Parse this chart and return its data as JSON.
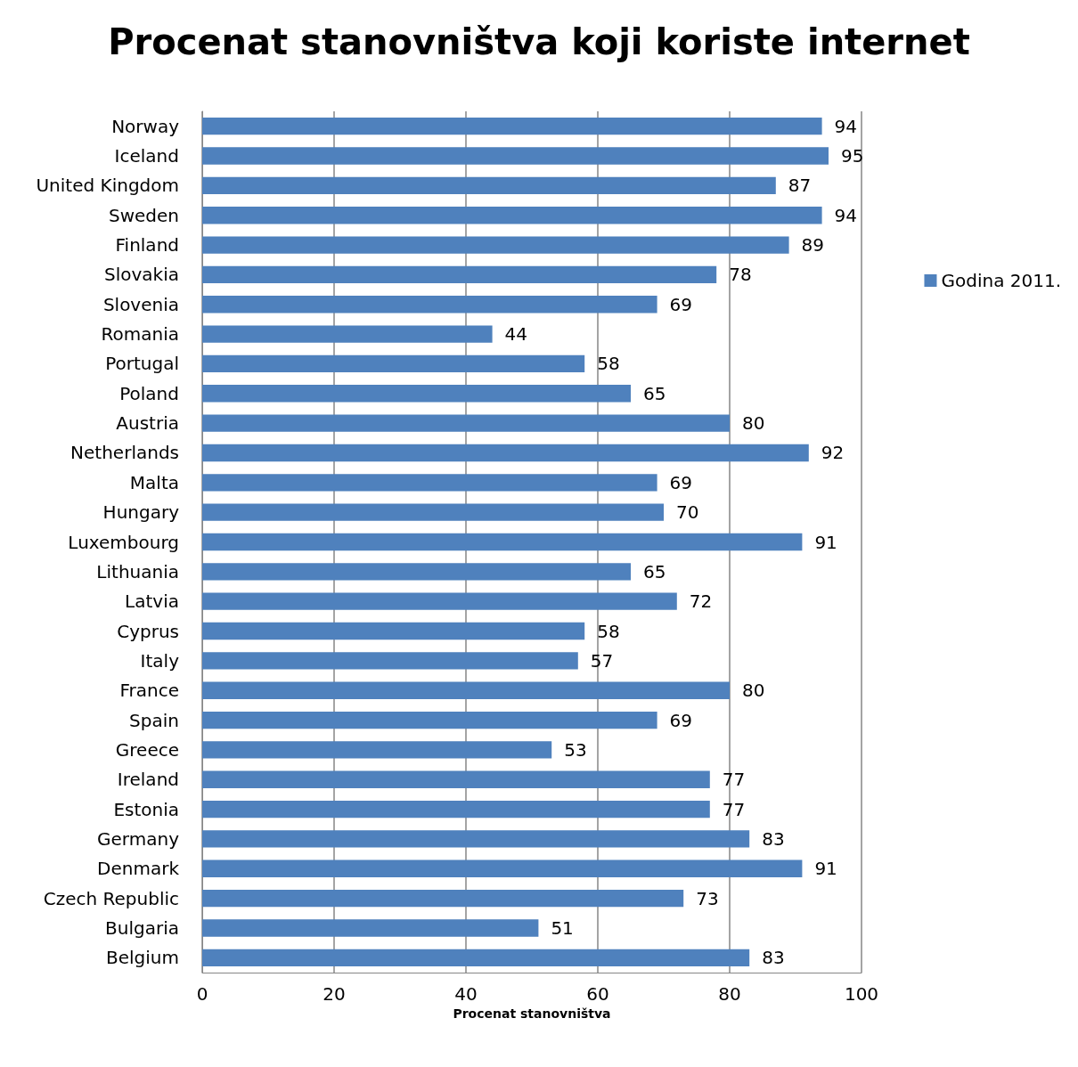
{
  "chart_data": {
    "type": "bar",
    "orientation": "horizontal",
    "title": "Procenat stanovništva koji koriste internet",
    "xlabel": "Procenat stanovništva",
    "categories": [
      "Norway",
      "Iceland",
      "United Kingdom",
      "Sweden",
      "Finland",
      "Slovakia",
      "Slovenia",
      "Romania",
      "Portugal",
      "Poland",
      "Austria",
      "Netherlands",
      "Malta",
      "Hungary",
      "Luxembourg",
      "Lithuania",
      "Latvia",
      "Cyprus",
      "Italy",
      "France",
      "Spain",
      "Greece",
      "Ireland",
      "Estonia",
      "Germany",
      "Denmark",
      "Czech Republic",
      "Bulgaria",
      "Belgium"
    ],
    "series": [
      {
        "name": "Godina 2011.",
        "color": "#4f81bd",
        "values": [
          94,
          95,
          87,
          94,
          89,
          78,
          69,
          44,
          58,
          65,
          80,
          92,
          69,
          70,
          91,
          65,
          72,
          58,
          57,
          80,
          69,
          53,
          77,
          77,
          83,
          91,
          73,
          51,
          83
        ]
      }
    ],
    "xlim": [
      0,
      100
    ],
    "xticks": [
      0,
      20,
      40,
      60,
      80,
      100
    ],
    "grid": "x",
    "legend": "right",
    "data_labels": true
  }
}
